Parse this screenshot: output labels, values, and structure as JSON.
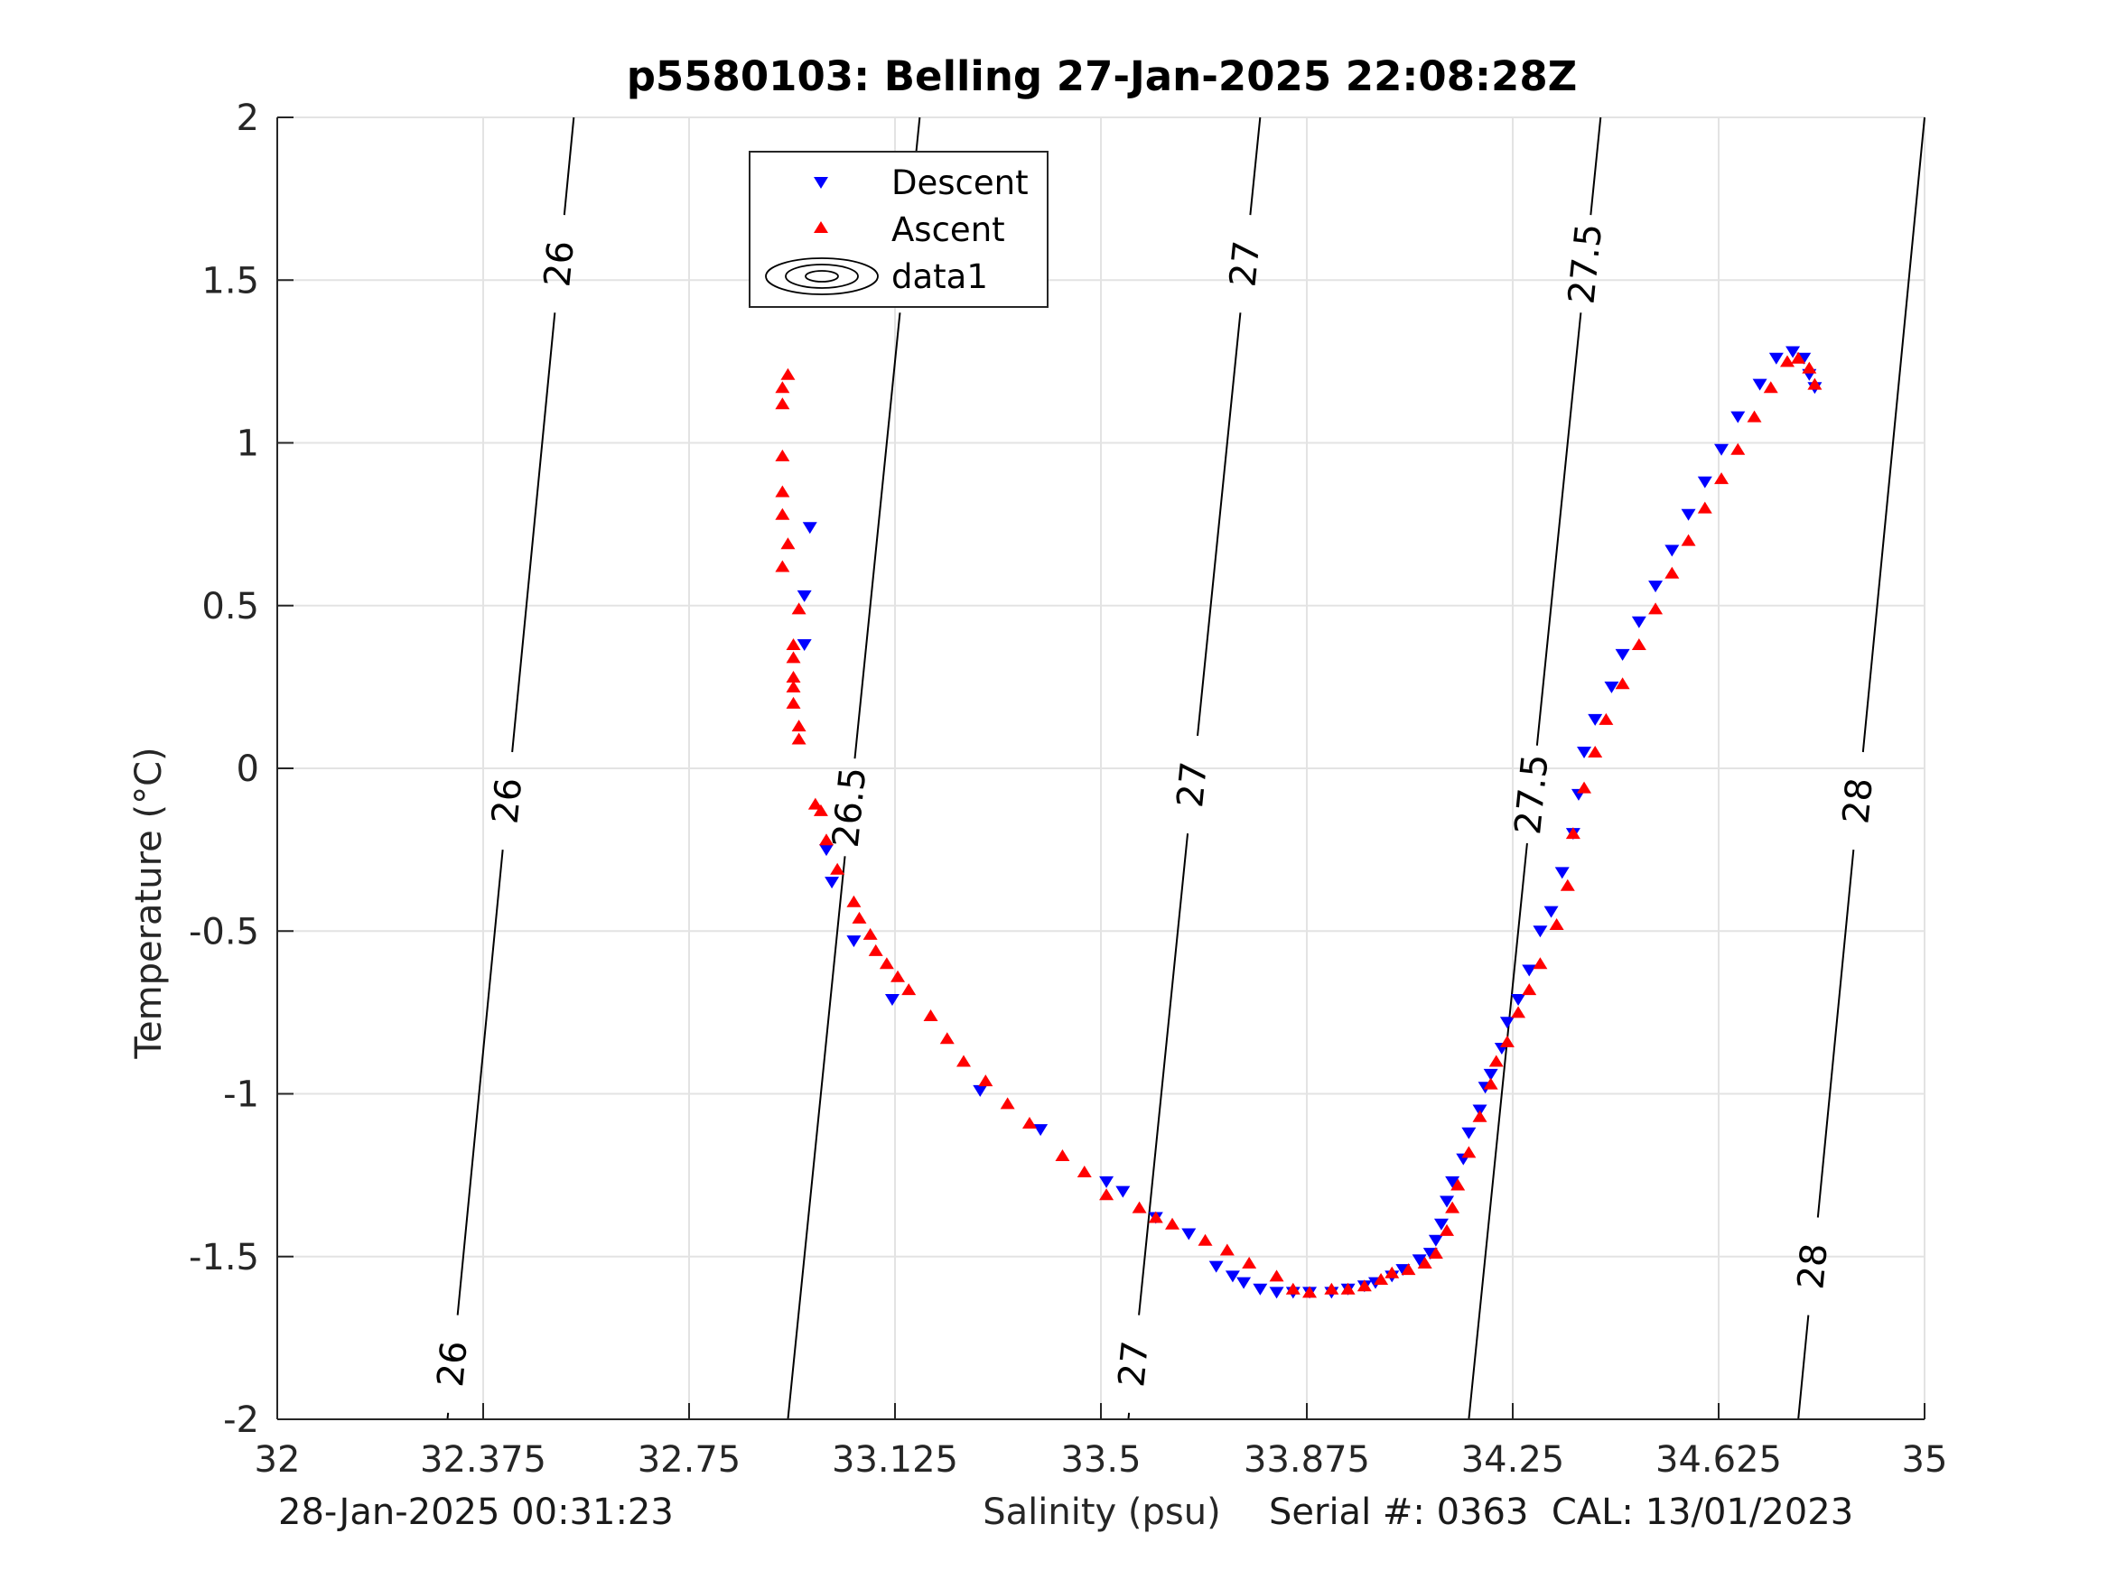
{
  "chart_data": {
    "type": "scatter",
    "title": "p5580103: Belling 27-Jan-2025 22:08:28Z",
    "xlabel": "Salinity (psu)",
    "ylabel": "Temperature (°C)",
    "xlim": [
      32,
      35
    ],
    "ylim": [
      -2,
      2
    ],
    "xticks": [
      "32",
      "32.375",
      "32.75",
      "33.125",
      "33.5",
      "33.875",
      "34.25",
      "34.625",
      "35"
    ],
    "yticks": [
      "2",
      "1.5",
      "1",
      "0.5",
      "0",
      "-0.5",
      "-1",
      "-1.5",
      "-2"
    ],
    "grid": true,
    "legend_position": "top-center",
    "legend": [
      "Descent",
      "Ascent",
      "data1"
    ],
    "series": [
      {
        "name": "Descent",
        "marker": "triangle-down",
        "color": "#0000ff",
        "points": [
          [
            32.97,
            0.74
          ],
          [
            32.96,
            0.53
          ],
          [
            32.96,
            0.38
          ],
          [
            33.0,
            -0.25
          ],
          [
            33.01,
            -0.35
          ],
          [
            33.05,
            -0.53
          ],
          [
            33.12,
            -0.71
          ],
          [
            33.28,
            -0.99
          ],
          [
            33.39,
            -1.11
          ],
          [
            33.51,
            -1.27
          ],
          [
            33.54,
            -1.3
          ],
          [
            33.6,
            -1.38
          ],
          [
            33.66,
            -1.43
          ],
          [
            33.71,
            -1.53
          ],
          [
            33.74,
            -1.56
          ],
          [
            33.76,
            -1.58
          ],
          [
            33.79,
            -1.6
          ],
          [
            33.82,
            -1.61
          ],
          [
            33.85,
            -1.61
          ],
          [
            33.88,
            -1.61
          ],
          [
            33.92,
            -1.61
          ],
          [
            33.95,
            -1.6
          ],
          [
            33.98,
            -1.59
          ],
          [
            34.0,
            -1.58
          ],
          [
            34.03,
            -1.56
          ],
          [
            34.05,
            -1.54
          ],
          [
            34.08,
            -1.51
          ],
          [
            34.1,
            -1.49
          ],
          [
            34.11,
            -1.45
          ],
          [
            34.12,
            -1.4
          ],
          [
            34.13,
            -1.33
          ],
          [
            34.14,
            -1.27
          ],
          [
            34.16,
            -1.2
          ],
          [
            34.17,
            -1.12
          ],
          [
            34.19,
            -1.05
          ],
          [
            34.2,
            -0.98
          ],
          [
            34.21,
            -0.94
          ],
          [
            34.23,
            -0.86
          ],
          [
            34.24,
            -0.78
          ],
          [
            34.26,
            -0.71
          ],
          [
            34.28,
            -0.62
          ],
          [
            34.3,
            -0.5
          ],
          [
            34.32,
            -0.44
          ],
          [
            34.34,
            -0.32
          ],
          [
            34.36,
            -0.2
          ],
          [
            34.37,
            -0.08
          ],
          [
            34.38,
            0.05
          ],
          [
            34.4,
            0.15
          ],
          [
            34.43,
            0.25
          ],
          [
            34.45,
            0.35
          ],
          [
            34.48,
            0.45
          ],
          [
            34.51,
            0.56
          ],
          [
            34.54,
            0.67
          ],
          [
            34.57,
            0.78
          ],
          [
            34.6,
            0.88
          ],
          [
            34.63,
            0.98
          ],
          [
            34.66,
            1.08
          ],
          [
            34.7,
            1.18
          ],
          [
            34.73,
            1.26
          ],
          [
            34.76,
            1.28
          ],
          [
            34.78,
            1.26
          ],
          [
            34.79,
            1.21
          ],
          [
            34.8,
            1.17
          ]
        ]
      },
      {
        "name": "Ascent",
        "marker": "triangle-up",
        "color": "#ff0000",
        "points": [
          [
            32.93,
            1.21
          ],
          [
            32.92,
            1.17
          ],
          [
            32.92,
            1.12
          ],
          [
            32.92,
            0.96
          ],
          [
            32.92,
            0.85
          ],
          [
            32.92,
            0.78
          ],
          [
            32.93,
            0.69
          ],
          [
            32.92,
            0.62
          ],
          [
            32.95,
            0.49
          ],
          [
            32.94,
            0.38
          ],
          [
            32.94,
            0.34
          ],
          [
            32.94,
            0.28
          ],
          [
            32.94,
            0.25
          ],
          [
            32.94,
            0.2
          ],
          [
            32.95,
            0.13
          ],
          [
            32.95,
            0.09
          ],
          [
            32.98,
            -0.11
          ],
          [
            32.99,
            -0.13
          ],
          [
            33.0,
            -0.22
          ],
          [
            33.02,
            -0.31
          ],
          [
            33.05,
            -0.41
          ],
          [
            33.06,
            -0.46
          ],
          [
            33.08,
            -0.51
          ],
          [
            33.09,
            -0.56
          ],
          [
            33.11,
            -0.6
          ],
          [
            33.13,
            -0.64
          ],
          [
            33.15,
            -0.68
          ],
          [
            33.19,
            -0.76
          ],
          [
            33.22,
            -0.83
          ],
          [
            33.25,
            -0.9
          ],
          [
            33.29,
            -0.96
          ],
          [
            33.33,
            -1.03
          ],
          [
            33.37,
            -1.09
          ],
          [
            33.43,
            -1.19
          ],
          [
            33.47,
            -1.24
          ],
          [
            33.51,
            -1.31
          ],
          [
            33.57,
            -1.35
          ],
          [
            33.6,
            -1.38
          ],
          [
            33.63,
            -1.4
          ],
          [
            33.69,
            -1.45
          ],
          [
            33.73,
            -1.48
          ],
          [
            33.77,
            -1.52
          ],
          [
            33.82,
            -1.56
          ],
          [
            33.85,
            -1.6
          ],
          [
            33.88,
            -1.61
          ],
          [
            33.92,
            -1.6
          ],
          [
            33.95,
            -1.6
          ],
          [
            33.98,
            -1.59
          ],
          [
            34.01,
            -1.57
          ],
          [
            34.03,
            -1.55
          ],
          [
            34.06,
            -1.54
          ],
          [
            34.09,
            -1.52
          ],
          [
            34.11,
            -1.49
          ],
          [
            34.13,
            -1.42
          ],
          [
            34.14,
            -1.35
          ],
          [
            34.15,
            -1.28
          ],
          [
            34.17,
            -1.18
          ],
          [
            34.19,
            -1.07
          ],
          [
            34.21,
            -0.97
          ],
          [
            34.22,
            -0.9
          ],
          [
            34.24,
            -0.84
          ],
          [
            34.26,
            -0.75
          ],
          [
            34.28,
            -0.68
          ],
          [
            34.3,
            -0.6
          ],
          [
            34.33,
            -0.48
          ],
          [
            34.35,
            -0.36
          ],
          [
            34.36,
            -0.2
          ],
          [
            34.38,
            -0.06
          ],
          [
            34.4,
            0.05
          ],
          [
            34.42,
            0.15
          ],
          [
            34.45,
            0.26
          ],
          [
            34.48,
            0.38
          ],
          [
            34.51,
            0.49
          ],
          [
            34.54,
            0.6
          ],
          [
            34.57,
            0.7
          ],
          [
            34.6,
            0.8
          ],
          [
            34.63,
            0.89
          ],
          [
            34.66,
            0.98
          ],
          [
            34.69,
            1.08
          ],
          [
            34.72,
            1.17
          ],
          [
            34.75,
            1.25
          ],
          [
            34.77,
            1.26
          ],
          [
            34.79,
            1.23
          ],
          [
            34.8,
            1.18
          ]
        ]
      }
    ],
    "isopycnals": [
      {
        "label": "26",
        "x_at_bottom": 32.31,
        "x_at_top": 32.54,
        "label_y": [
          -1.83,
          -0.1,
          1.55
        ]
      },
      {
        "label": "26.5",
        "x_at_bottom": 32.93,
        "x_at_top": 33.17,
        "label_y": [
          -0.12,
          1.55
        ]
      },
      {
        "label": "27",
        "x_at_bottom": 33.55,
        "x_at_top": 33.79,
        "label_y": [
          -1.83,
          -0.05,
          1.55
        ]
      },
      {
        "label": "27.5",
        "x_at_bottom": 34.17,
        "x_at_top": 34.41,
        "label_y": [
          -0.08,
          1.55
        ]
      },
      {
        "label": "28",
        "x_at_bottom": 34.77,
        "x_at_top": 35.0,
        "label_y": [
          -1.53,
          -0.1
        ]
      }
    ]
  },
  "footer": {
    "left_text": "28-Jan-2025 00:31:23",
    "right_text": "Serial #: 0363  CAL: 13/01/2023"
  }
}
